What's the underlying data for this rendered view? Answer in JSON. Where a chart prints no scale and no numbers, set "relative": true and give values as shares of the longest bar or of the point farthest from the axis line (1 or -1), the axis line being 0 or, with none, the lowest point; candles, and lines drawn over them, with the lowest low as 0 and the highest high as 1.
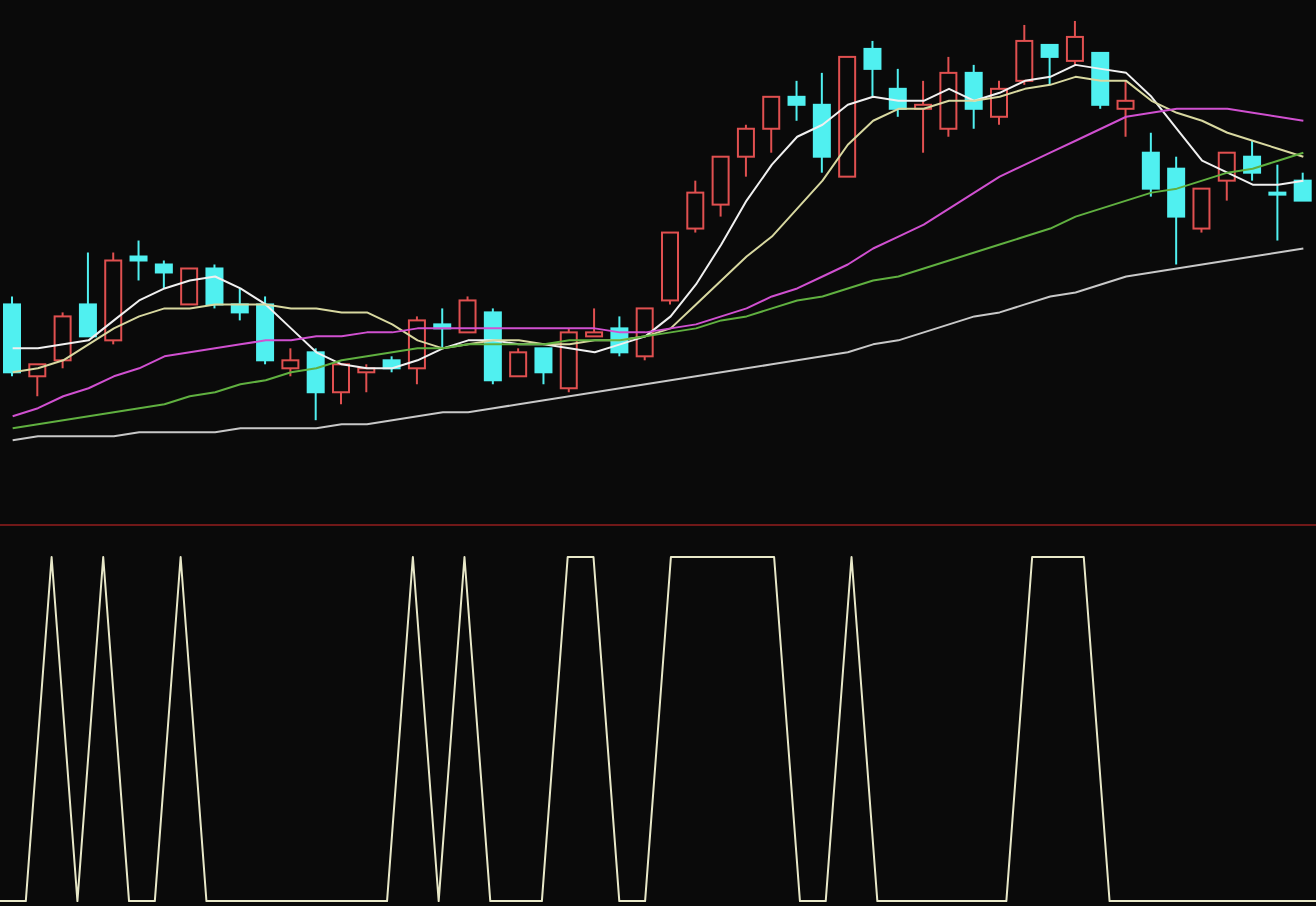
{
  "chart_data": [
    {
      "type": "candlestick",
      "relative": true,
      "categories": [
        null,
        null,
        null,
        null,
        null,
        null,
        null,
        null,
        null,
        null,
        null,
        null,
        null,
        null,
        null,
        null,
        null,
        null,
        null,
        null,
        null,
        null,
        null,
        null,
        null,
        null,
        null,
        null,
        null,
        null,
        null,
        null,
        null,
        null,
        null,
        null,
        null,
        null,
        null,
        null,
        null,
        null,
        null,
        null,
        null,
        null,
        null,
        null,
        null,
        null,
        null,
        null
      ],
      "ohlc": [
        [
          0.29,
          0.31,
          0.11,
          0.12
        ],
        [
          0.11,
          0.14,
          0.06,
          0.14
        ],
        [
          0.15,
          0.27,
          0.13,
          0.26
        ],
        [
          0.29,
          0.42,
          0.21,
          0.21
        ],
        [
          0.2,
          0.42,
          0.19,
          0.4
        ],
        [
          0.41,
          0.45,
          0.35,
          0.4
        ],
        [
          0.39,
          0.4,
          0.33,
          0.37
        ],
        [
          0.29,
          0.38,
          0.29,
          0.38
        ],
        [
          0.38,
          0.39,
          0.28,
          0.29
        ],
        [
          0.29,
          0.33,
          0.25,
          0.27
        ],
        [
          0.29,
          0.31,
          0.14,
          0.15
        ],
        [
          0.13,
          0.18,
          0.11,
          0.15
        ],
        [
          0.17,
          0.18,
          0.0,
          0.07
        ],
        [
          0.07,
          0.14,
          0.04,
          0.14
        ],
        [
          0.12,
          0.14,
          0.07,
          0.13
        ],
        [
          0.15,
          0.16,
          0.12,
          0.13
        ],
        [
          0.13,
          0.26,
          0.09,
          0.25
        ],
        [
          0.24,
          0.28,
          0.18,
          0.23
        ],
        [
          0.22,
          0.31,
          0.22,
          0.3
        ],
        [
          0.27,
          0.28,
          0.09,
          0.1
        ],
        [
          0.11,
          0.18,
          0.11,
          0.17
        ],
        [
          0.18,
          0.18,
          0.09,
          0.12
        ],
        [
          0.08,
          0.23,
          0.07,
          0.22
        ],
        [
          0.21,
          0.28,
          0.21,
          0.22
        ],
        [
          0.23,
          0.26,
          0.16,
          0.17
        ],
        [
          0.16,
          0.28,
          0.15,
          0.28
        ],
        [
          0.3,
          0.47,
          0.29,
          0.47
        ],
        [
          0.48,
          0.6,
          0.47,
          0.57
        ],
        [
          0.54,
          0.66,
          0.51,
          0.66
        ],
        [
          0.66,
          0.74,
          0.61,
          0.73
        ],
        [
          0.73,
          0.81,
          0.67,
          0.81
        ],
        [
          0.81,
          0.85,
          0.75,
          0.79
        ],
        [
          0.79,
          0.87,
          0.62,
          0.66
        ],
        [
          0.61,
          0.91,
          0.61,
          0.91
        ],
        [
          0.93,
          0.95,
          0.81,
          0.88
        ],
        [
          0.83,
          0.88,
          0.76,
          0.78
        ],
        [
          0.78,
          0.85,
          0.67,
          0.79
        ],
        [
          0.73,
          0.91,
          0.71,
          0.87
        ],
        [
          0.87,
          0.89,
          0.73,
          0.78
        ],
        [
          0.76,
          0.85,
          0.74,
          0.83
        ],
        [
          0.85,
          0.99,
          0.84,
          0.95
        ],
        [
          0.94,
          0.94,
          0.84,
          0.91
        ],
        [
          0.9,
          1.0,
          0.89,
          0.96
        ],
        [
          0.92,
          0.92,
          0.78,
          0.79
        ],
        [
          0.78,
          0.85,
          0.71,
          0.8
        ],
        [
          0.67,
          0.72,
          0.56,
          0.58
        ],
        [
          0.63,
          0.66,
          0.39,
          0.51
        ],
        [
          0.48,
          0.58,
          0.47,
          0.58
        ],
        [
          0.6,
          0.67,
          0.55,
          0.67
        ],
        [
          0.66,
          0.7,
          0.6,
          0.62
        ],
        [
          0.57,
          0.64,
          0.45,
          0.57
        ],
        [
          0.6,
          0.62,
          0.55,
          0.55
        ]
      ],
      "colors": [
        "#50f0f0",
        "#e05050",
        "#e05050",
        "#50f0f0",
        "#e05050",
        "#50f0f0",
        "#50f0f0",
        "#e05050",
        "#50f0f0",
        "#50f0f0",
        "#50f0f0",
        "#e05050",
        "#50f0f0",
        "#e05050",
        "#e05050",
        "#50f0f0",
        "#e05050",
        "#50f0f0",
        "#e05050",
        "#50f0f0",
        "#e05050",
        "#50f0f0",
        "#e05050",
        "#e05050",
        "#50f0f0",
        "#e05050",
        "#e05050",
        "#e05050",
        "#e05050",
        "#e05050",
        "#e05050",
        "#50f0f0",
        "#50f0f0",
        "#e05050",
        "#50f0f0",
        "#50f0f0",
        "#e05050",
        "#e05050",
        "#50f0f0",
        "#e05050",
        "#e05050",
        "#50f0f0",
        "#e05050",
        "#50f0f0",
        "#e05050",
        "#50f0f0",
        "#50f0f0",
        "#e05050",
        "#e05050",
        "#50f0f0",
        "#50f0f0",
        "#50f0f0"
      ],
      "series": [
        {
          "type": "line",
          "color": "#f0f0f0",
          "values": [
            0.18,
            0.18,
            0.19,
            0.2,
            0.25,
            0.3,
            0.33,
            0.35,
            0.36,
            0.33,
            0.29,
            0.23,
            0.17,
            0.14,
            0.13,
            0.13,
            0.15,
            0.18,
            0.2,
            0.2,
            0.19,
            0.19,
            0.18,
            0.17,
            0.19,
            0.21,
            0.26,
            0.34,
            0.44,
            0.55,
            0.64,
            0.71,
            0.74,
            0.79,
            0.81,
            0.8,
            0.8,
            0.83,
            0.8,
            0.82,
            0.85,
            0.86,
            0.89,
            0.88,
            0.87,
            0.81,
            0.73,
            0.65,
            0.62,
            0.59,
            0.59,
            0.6
          ]
        },
        {
          "type": "line",
          "color": "#d8d8a0",
          "values": [
            0.12,
            0.13,
            0.15,
            0.19,
            0.23,
            0.26,
            0.28,
            0.28,
            0.29,
            0.29,
            0.29,
            0.28,
            0.28,
            0.27,
            0.27,
            0.24,
            0.2,
            0.18,
            0.19,
            0.2,
            0.2,
            0.19,
            0.19,
            0.2,
            0.2,
            0.21,
            0.23,
            0.29,
            0.35,
            0.41,
            0.46,
            0.53,
            0.6,
            0.69,
            0.75,
            0.78,
            0.78,
            0.8,
            0.8,
            0.81,
            0.83,
            0.84,
            0.86,
            0.85,
            0.85,
            0.8,
            0.77,
            0.75,
            0.72,
            0.7,
            0.68,
            0.66
          ]
        },
        {
          "type": "line",
          "color": "#d050d0",
          "values": [
            0.01,
            0.03,
            0.06,
            0.08,
            0.11,
            0.13,
            0.16,
            0.17,
            0.18,
            0.19,
            0.2,
            0.2,
            0.21,
            0.21,
            0.22,
            0.22,
            0.23,
            0.23,
            0.23,
            0.23,
            0.23,
            0.23,
            0.23,
            0.23,
            0.22,
            0.22,
            0.23,
            0.24,
            0.26,
            0.28,
            0.31,
            0.33,
            0.36,
            0.39,
            0.43,
            0.46,
            0.49,
            0.53,
            0.57,
            0.61,
            0.64,
            0.67,
            0.7,
            0.73,
            0.76,
            0.77,
            0.78,
            0.78,
            0.78,
            0.77,
            0.76,
            0.75
          ]
        },
        {
          "type": "line",
          "color": "#60b040",
          "values": [
            -0.02,
            -0.01,
            0,
            0.01,
            0.02,
            0.03,
            0.04,
            0.06,
            0.07,
            0.09,
            0.1,
            0.12,
            0.13,
            0.15,
            0.16,
            0.17,
            0.18,
            0.18,
            0.19,
            0.19,
            0.19,
            0.19,
            0.2,
            0.2,
            0.2,
            0.21,
            0.22,
            0.23,
            0.25,
            0.26,
            0.28,
            0.3,
            0.31,
            0.33,
            0.35,
            0.36,
            0.38,
            0.4,
            0.42,
            0.44,
            0.46,
            0.48,
            0.51,
            0.53,
            0.55,
            0.57,
            0.58,
            0.6,
            0.62,
            0.63,
            0.65,
            0.67
          ]
        },
        {
          "type": "line",
          "color": "#c8c8c8",
          "values": [
            -0.05,
            -0.04,
            -0.04,
            -0.04,
            -0.04,
            -0.03,
            -0.03,
            -0.03,
            -0.03,
            -0.02,
            -0.02,
            -0.02,
            -0.02,
            -0.01,
            -0.01,
            0,
            0.01,
            0.02,
            0.02,
            0.03,
            0.04,
            0.05,
            0.06,
            0.07,
            0.08,
            0.09,
            0.1,
            0.11,
            0.12,
            0.13,
            0.14,
            0.15,
            0.16,
            0.17,
            0.19,
            0.2,
            0.22,
            0.24,
            0.26,
            0.27,
            0.29,
            0.31,
            0.32,
            0.34,
            0.36,
            0.37,
            0.38,
            0.39,
            0.4,
            0.41,
            0.42,
            0.43
          ]
        }
      ]
    },
    {
      "type": "line",
      "relative": true,
      "categories": [
        null,
        null,
        null,
        null,
        null,
        null,
        null,
        null,
        null,
        null,
        null,
        null,
        null,
        null,
        null,
        null,
        null,
        null,
        null,
        null,
        null,
        null,
        null,
        null,
        null,
        null,
        null,
        null,
        null,
        null,
        null,
        null,
        null,
        null,
        null,
        null,
        null,
        null,
        null,
        null,
        null,
        null,
        null,
        null,
        null,
        null,
        null,
        null,
        null,
        null,
        null,
        null
      ],
      "series": [
        {
          "color": "#e8e8c8",
          "values": [
            0,
            0,
            1,
            0,
            1,
            0,
            0,
            1,
            0,
            0,
            0,
            0,
            0,
            0,
            0,
            0,
            1,
            0,
            1,
            0,
            0,
            0,
            1,
            1,
            0,
            0,
            1,
            1,
            1,
            1,
            1,
            0,
            0,
            1,
            0,
            0,
            0,
            0,
            0,
            0,
            1,
            1,
            1,
            0,
            0,
            0,
            0,
            0,
            0,
            0,
            0,
            0
          ]
        }
      ]
    }
  ]
}
